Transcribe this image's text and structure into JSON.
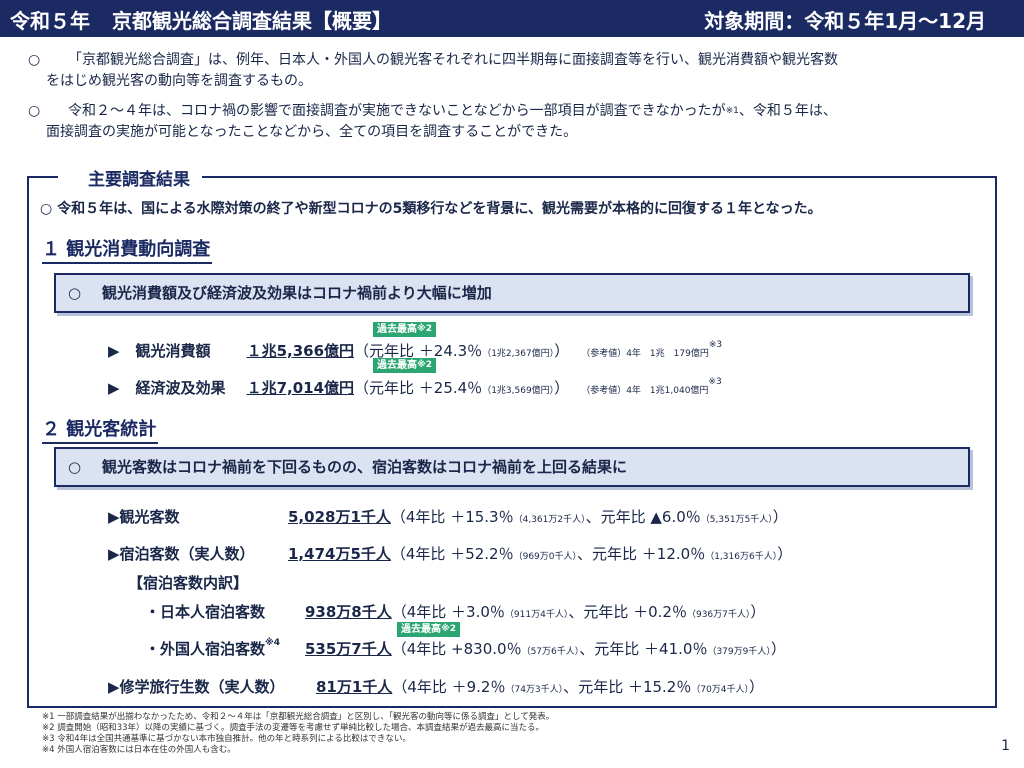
{
  "header": {
    "title_prefix": "令和５年",
    "title_main": "京都観光総合調査結果【概要】",
    "period": "対象期間：令和５年1月～12月"
  },
  "intro": [
    {
      "mark": "○",
      "line1": "「京都観光総合調査」は、例年、日本人・外国人の観光客それぞれに四半期毎に面接調査等を行い、観光消費額や観光客数",
      "line2": "をはじめ観光客の動向等を調査するもの。"
    },
    {
      "mark": "○",
      "line1": "令和２～４年は、コロナ禍の影響で面接調査が実施できないことなどから一部項目が調査できなかったが",
      "sup": "※1",
      "line1b": "、令和５年は、",
      "line2": "面接調査の実施が可能となったことなどから、全ての項目を調査することができた。"
    }
  ],
  "box": {
    "title": "主要調査結果",
    "lead": "○ 令和５年は、国による水際対策の終了や新型コロナの5類移行などを背景に、観光需要が本格的に回復する１年となった。"
  },
  "section1": {
    "heading": "１ 観光消費動向調査",
    "banner": "観光消費額及び経済波及効果はコロナ禍前より大幅に増加",
    "banner_mark": "○",
    "rows": [
      {
        "arrow": "▶",
        "label": "観光消費額",
        "value": "１兆5,366億円",
        "badge": "過去最高",
        "badge_sup": "※2",
        "cmp": "（元年比 ＋24.3％",
        "cmp_small": "（1兆2,367億円）",
        "close": "）",
        "ref": "（参考値）4年　1兆　179億円",
        "ref_sup": "※3"
      },
      {
        "arrow": "▶",
        "label": "経済波及効果",
        "value": "１兆7,014億円",
        "badge": "過去最高",
        "badge_sup": "※2",
        "cmp": "（元年比 ＋25.4％",
        "cmp_small": "（1兆3,569億円）",
        "close": "）",
        "ref": "（参考値）4年　1兆1,040億円",
        "ref_sup": "※3"
      }
    ]
  },
  "section2": {
    "heading": "２ 観光客統計",
    "banner": "観光客数はコロナ禍前を下回るものの、宿泊客数はコロナ禍前を上回る結果に",
    "banner_mark": "○",
    "breakdown_label": "【宿泊客数内訳】",
    "rows": [
      {
        "label": "▶観光客数",
        "value": "5,028万1千人",
        "cmp1": "（4年比 ＋15.3％",
        "cmp1_small": "（4,361万2千人）",
        "sep": "、",
        "cmp2": "元年比 ▲6.0％",
        "cmp2_small": "（5,351万5千人）",
        "close": "）"
      },
      {
        "label": "▶宿泊客数（実人数）",
        "value": "1,474万5千人",
        "cmp1": "（4年比 ＋52.2％",
        "cmp1_small": "（969万0千人）",
        "sep": "、",
        "cmp2": "元年比 ＋12.0％",
        "cmp2_small": "（1,316万6千人）",
        "close": "）"
      },
      {
        "label": "・日本人宿泊客数",
        "value": "938万8千人",
        "cmp1": "（4年比 ＋3.0％",
        "cmp1_small": "（911万4千人）",
        "sep": "、",
        "cmp2": "元年比 ＋0.2％",
        "cmp2_small": "（936万7千人）",
        "close": "）"
      },
      {
        "label": "・外国人宿泊客数",
        "label_sup": "※4",
        "value": "535万7千人",
        "badge": "過去最高",
        "badge_sup": "※2",
        "cmp1": "（4年比 +830.0％",
        "cmp1_small": "（57万6千人）",
        "sep": "、",
        "cmp2": "元年比 ＋41.0％",
        "cmp2_small": "（379万9千人）",
        "close": "）"
      },
      {
        "label": "▶修学旅行生数（実人数）",
        "value": "81万1千人",
        "cmp1": "（4年比 ＋9.2％",
        "cmp1_small": "（74万3千人）",
        "sep": "、",
        "cmp2": "元年比 ＋15.2％",
        "cmp2_small": "（70万4千人）",
        "close": "）"
      }
    ]
  },
  "footnotes": [
    "※1 一部調査結果が出揃わなかったため、令和２～４年は「京都観光総合調査」と区別し、「観光客の動向等に係る調査」として発表。",
    "※2 調査開始（昭和33年）以降の実績に基づく。調査手法の変遷等を考慮せず単純比較した場合、本調査結果が過去最高に当たる。",
    "※3 令和4年は全国共通基準に基づかない本市独自推計。他の年と時系列による比較はできない。",
    "※4 外国人宿泊客数には日本在住の外国人も含む。"
  ],
  "page_number": "1"
}
